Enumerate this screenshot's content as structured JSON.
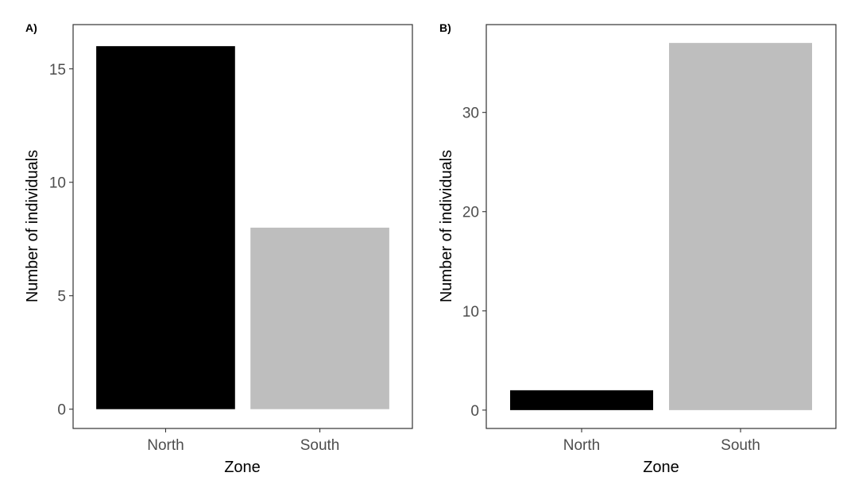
{
  "colors": {
    "north": "#000000",
    "south": "#bebebe",
    "frame": "#333333",
    "tick": "#333333"
  },
  "chart_data": [
    {
      "type": "bar",
      "panel_label": "A)",
      "categories": [
        "North",
        "South"
      ],
      "values": [
        16,
        8
      ],
      "xlabel": "Zone",
      "ylabel": "Number of individuals",
      "ylim": [
        -0.85,
        16.95
      ],
      "yticks": [
        0,
        5,
        10,
        15
      ],
      "grid": false,
      "legend": "none"
    },
    {
      "type": "bar",
      "panel_label": "B)",
      "categories": [
        "North",
        "South"
      ],
      "values": [
        2,
        37
      ],
      "xlabel": "Zone",
      "ylabel": "Number of individuals",
      "ylim": [
        -1.85,
        38.85
      ],
      "yticks": [
        0,
        10,
        20,
        30
      ],
      "grid": false,
      "legend": "none"
    }
  ]
}
